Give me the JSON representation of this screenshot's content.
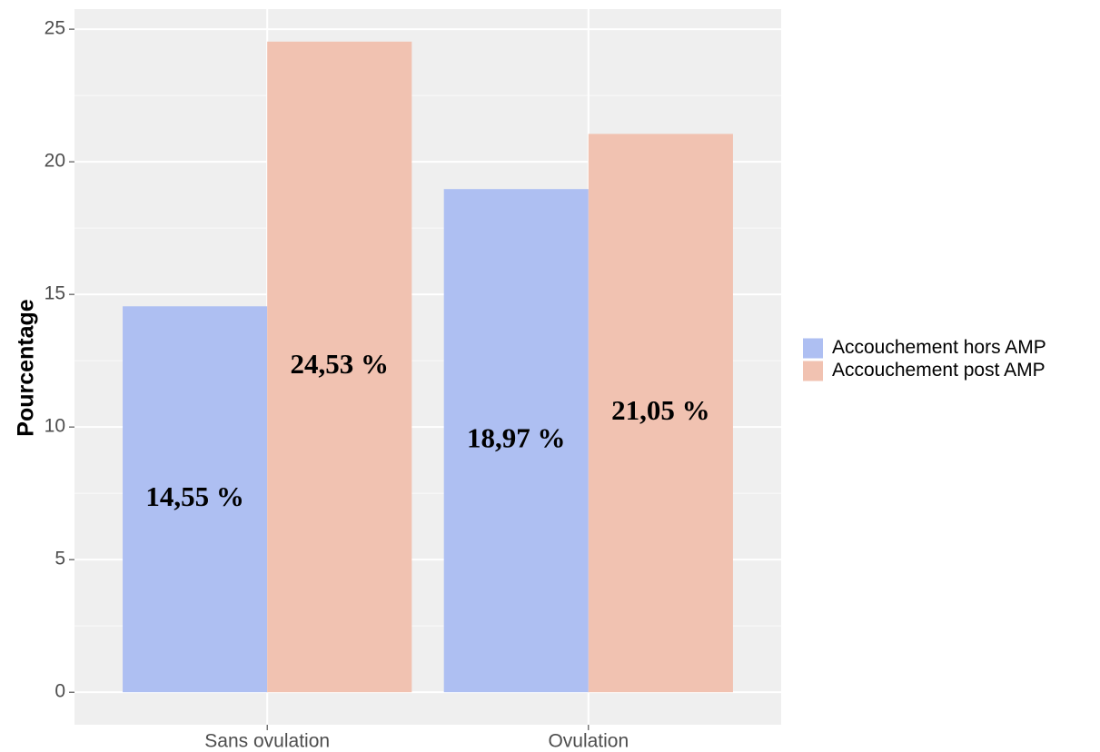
{
  "chart_data": {
    "type": "bar",
    "y_label": "Pourcentage",
    "categories": [
      "Sans ovulation",
      "Ovulation"
    ],
    "series": [
      {
        "name": "Accouchement hors AMP",
        "color": "#aebff2",
        "values": [
          14.55,
          18.97
        ],
        "value_labels": [
          "14,55 %",
          "18,97 %"
        ]
      },
      {
        "name": "Accouchement post AMP",
        "color": "#f1c2b1",
        "values": [
          24.53,
          21.05
        ],
        "value_labels": [
          "24,53 %",
          "21,05 %"
        ]
      }
    ],
    "ylim": [
      -1.2265,
      25.7565
    ],
    "yticks": [
      0,
      5,
      10,
      15,
      20,
      25
    ],
    "grid": true,
    "legend": "right"
  }
}
